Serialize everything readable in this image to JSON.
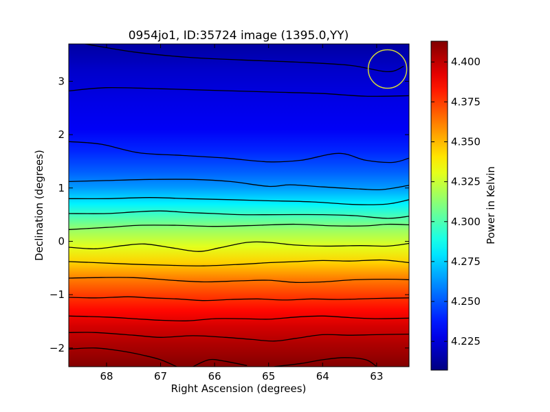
{
  "chart_data": {
    "type": "heatmap",
    "title": "0954jo1, ID:35724 image (1395.0,YY)",
    "xlabel": "Right Ascension (degrees)",
    "ylabel": "Declination (degrees)",
    "xlim": [
      68.7,
      62.4
    ],
    "ylim": [
      -2.35,
      3.7
    ],
    "x_ticks": [
      68,
      67,
      66,
      65,
      64,
      63
    ],
    "x_tick_labels": [
      "68",
      "67",
      "66",
      "65",
      "64",
      "63"
    ],
    "y_ticks": [
      -2,
      -1,
      0,
      1,
      2,
      3
    ],
    "y_tick_labels": [
      "−2",
      "−1",
      "0",
      "1",
      "2",
      "3"
    ],
    "colorbar": {
      "label": "Power in Kelvin",
      "range": [
        4.207,
        4.413
      ],
      "ticks": [
        4.225,
        4.25,
        4.275,
        4.3,
        4.325,
        4.35,
        4.375,
        4.4
      ],
      "tick_labels": [
        "4.225",
        "4.250",
        "4.275",
        "4.300",
        "4.325",
        "4.350",
        "4.375",
        "4.400"
      ],
      "colormap": "jet"
    },
    "background_profile": {
      "dec": [
        3.7,
        3.2,
        2.6,
        2.1,
        1.7,
        1.3,
        1.0,
        0.7,
        0.45,
        0.2,
        -0.1,
        -0.4,
        -0.7,
        -1.0,
        -1.3,
        -1.6,
        -1.9,
        -2.35
      ],
      "power": [
        4.214,
        4.222,
        4.228,
        4.231,
        4.24,
        4.252,
        4.264,
        4.282,
        4.3,
        4.316,
        4.33,
        4.345,
        4.362,
        4.375,
        4.386,
        4.396,
        4.403,
        4.412
      ]
    },
    "contours": [
      {
        "points": [
          [
            68.4,
            3.7
          ],
          [
            67.5,
            3.55
          ],
          [
            66.5,
            3.45
          ],
          [
            65.5,
            3.4
          ],
          [
            64.5,
            3.36
          ],
          [
            63.5,
            3.3
          ],
          [
            62.8,
            3.18
          ],
          [
            62.5,
            3.28
          ]
        ]
      },
      {
        "points": [
          [
            68.7,
            2.82
          ],
          [
            68.0,
            2.88
          ],
          [
            67.0,
            2.86
          ],
          [
            66.0,
            2.83
          ],
          [
            65.0,
            2.8
          ],
          [
            64.0,
            2.77
          ],
          [
            63.2,
            2.72
          ],
          [
            62.4,
            2.73
          ]
        ]
      },
      {
        "points": [
          [
            68.7,
            1.87
          ],
          [
            68.1,
            1.82
          ],
          [
            67.4,
            1.66
          ],
          [
            66.6,
            1.61
          ],
          [
            65.8,
            1.56
          ],
          [
            65.0,
            1.49
          ],
          [
            64.4,
            1.52
          ],
          [
            63.7,
            1.65
          ],
          [
            63.2,
            1.52
          ],
          [
            62.7,
            1.48
          ],
          [
            62.4,
            1.56
          ]
        ]
      },
      {
        "points": [
          [
            68.7,
            1.12
          ],
          [
            68.0,
            1.14
          ],
          [
            67.2,
            1.16
          ],
          [
            66.4,
            1.16
          ],
          [
            65.7,
            1.12
          ],
          [
            65.0,
            1.03
          ],
          [
            64.6,
            1.06
          ],
          [
            64.0,
            1.02
          ],
          [
            63.3,
            0.98
          ],
          [
            62.9,
            0.97
          ],
          [
            62.4,
            1.05
          ]
        ]
      },
      {
        "points": [
          [
            68.7,
            0.8
          ],
          [
            68.0,
            0.8
          ],
          [
            67.2,
            0.82
          ],
          [
            66.5,
            0.8
          ],
          [
            65.7,
            0.78
          ],
          [
            65.0,
            0.76
          ],
          [
            64.2,
            0.74
          ],
          [
            63.4,
            0.69
          ],
          [
            62.8,
            0.7
          ],
          [
            62.4,
            0.78
          ]
        ]
      },
      {
        "points": [
          [
            68.7,
            0.52
          ],
          [
            68.0,
            0.52
          ],
          [
            67.5,
            0.55
          ],
          [
            67.0,
            0.57
          ],
          [
            66.5,
            0.54
          ],
          [
            66.0,
            0.52
          ],
          [
            65.5,
            0.5
          ],
          [
            64.8,
            0.5
          ],
          [
            64.0,
            0.5
          ],
          [
            63.4,
            0.48
          ],
          [
            62.8,
            0.43
          ],
          [
            62.4,
            0.47
          ]
        ]
      },
      {
        "points": [
          [
            68.7,
            0.22
          ],
          [
            68.0,
            0.26
          ],
          [
            67.4,
            0.3
          ],
          [
            66.7,
            0.3
          ],
          [
            66.0,
            0.28
          ],
          [
            65.2,
            0.3
          ],
          [
            64.5,
            0.32
          ],
          [
            63.8,
            0.29
          ],
          [
            63.2,
            0.29
          ],
          [
            62.8,
            0.32
          ],
          [
            62.4,
            0.31
          ]
        ]
      },
      {
        "points": [
          [
            68.7,
            -0.11
          ],
          [
            68.2,
            -0.14
          ],
          [
            67.7,
            -0.08
          ],
          [
            67.3,
            -0.05
          ],
          [
            66.8,
            -0.12
          ],
          [
            66.3,
            -0.19
          ],
          [
            65.9,
            -0.12
          ],
          [
            65.4,
            -0.02
          ],
          [
            65.0,
            -0.02
          ],
          [
            64.5,
            -0.07
          ],
          [
            64.0,
            -0.09
          ],
          [
            63.3,
            -0.08
          ],
          [
            62.8,
            -0.09
          ],
          [
            62.4,
            -0.04
          ]
        ]
      },
      {
        "points": [
          [
            68.7,
            -0.38
          ],
          [
            68.2,
            -0.4
          ],
          [
            67.5,
            -0.43
          ],
          [
            66.8,
            -0.45
          ],
          [
            66.2,
            -0.46
          ],
          [
            65.5,
            -0.43
          ],
          [
            65.0,
            -0.4
          ],
          [
            64.5,
            -0.38
          ],
          [
            64.0,
            -0.36
          ],
          [
            63.5,
            -0.37
          ],
          [
            62.9,
            -0.35
          ],
          [
            62.4,
            -0.4
          ]
        ]
      },
      {
        "points": [
          [
            68.7,
            -0.69
          ],
          [
            68.2,
            -0.68
          ],
          [
            67.5,
            -0.68
          ],
          [
            66.8,
            -0.73
          ],
          [
            66.2,
            -0.76
          ],
          [
            65.5,
            -0.74
          ],
          [
            65.0,
            -0.73
          ],
          [
            64.5,
            -0.77
          ],
          [
            64.0,
            -0.76
          ],
          [
            63.4,
            -0.72
          ],
          [
            62.8,
            -0.71
          ],
          [
            62.4,
            -0.72
          ]
        ]
      },
      {
        "points": [
          [
            68.7,
            -1.05
          ],
          [
            68.2,
            -1.06
          ],
          [
            67.6,
            -1.04
          ],
          [
            67.2,
            -1.06
          ],
          [
            66.7,
            -1.08
          ],
          [
            66.2,
            -1.11
          ],
          [
            65.7,
            -1.09
          ],
          [
            65.2,
            -1.08
          ],
          [
            64.7,
            -1.1
          ],
          [
            64.2,
            -1.08
          ],
          [
            63.7,
            -1.09
          ],
          [
            63.0,
            -1.07
          ],
          [
            62.4,
            -1.06
          ]
        ]
      },
      {
        "points": [
          [
            68.7,
            -1.4
          ],
          [
            68.0,
            -1.42
          ],
          [
            67.5,
            -1.45
          ],
          [
            67.0,
            -1.48
          ],
          [
            66.5,
            -1.49
          ],
          [
            66.0,
            -1.45
          ],
          [
            65.5,
            -1.45
          ],
          [
            65.0,
            -1.46
          ],
          [
            64.5,
            -1.42
          ],
          [
            64.0,
            -1.4
          ],
          [
            63.5,
            -1.43
          ],
          [
            63.0,
            -1.45
          ],
          [
            62.4,
            -1.44
          ]
        ]
      },
      {
        "points": [
          [
            68.7,
            -1.71
          ],
          [
            68.2,
            -1.71
          ],
          [
            67.5,
            -1.76
          ],
          [
            67.0,
            -1.8
          ],
          [
            66.4,
            -1.77
          ],
          [
            65.8,
            -1.8
          ],
          [
            65.3,
            -1.84
          ],
          [
            64.9,
            -1.87
          ],
          [
            64.5,
            -1.82
          ],
          [
            64.0,
            -1.75
          ],
          [
            63.5,
            -1.76
          ],
          [
            63.0,
            -1.75
          ],
          [
            62.4,
            -1.74
          ]
        ]
      },
      {
        "points": [
          [
            68.7,
            -2.02
          ],
          [
            68.2,
            -2.0
          ],
          [
            67.7,
            -2.06
          ],
          [
            67.3,
            -2.14
          ],
          [
            67.0,
            -2.22
          ],
          [
            66.7,
            -2.35
          ]
        ]
      },
      {
        "points": [
          [
            66.4,
            -2.35
          ],
          [
            66.1,
            -2.22
          ],
          [
            65.8,
            -2.25
          ],
          [
            65.4,
            -2.33
          ]
        ]
      },
      {
        "points": [
          [
            64.9,
            -2.35
          ],
          [
            64.4,
            -2.29
          ],
          [
            64.0,
            -2.22
          ],
          [
            63.6,
            -2.18
          ],
          [
            63.2,
            -2.22
          ],
          [
            63.0,
            -2.35
          ]
        ]
      }
    ],
    "beam_circle": {
      "ra": 62.8,
      "dec": 3.23,
      "radius_deg": 0.36,
      "color": "#d4d83a"
    },
    "contour_color": "#000000"
  }
}
